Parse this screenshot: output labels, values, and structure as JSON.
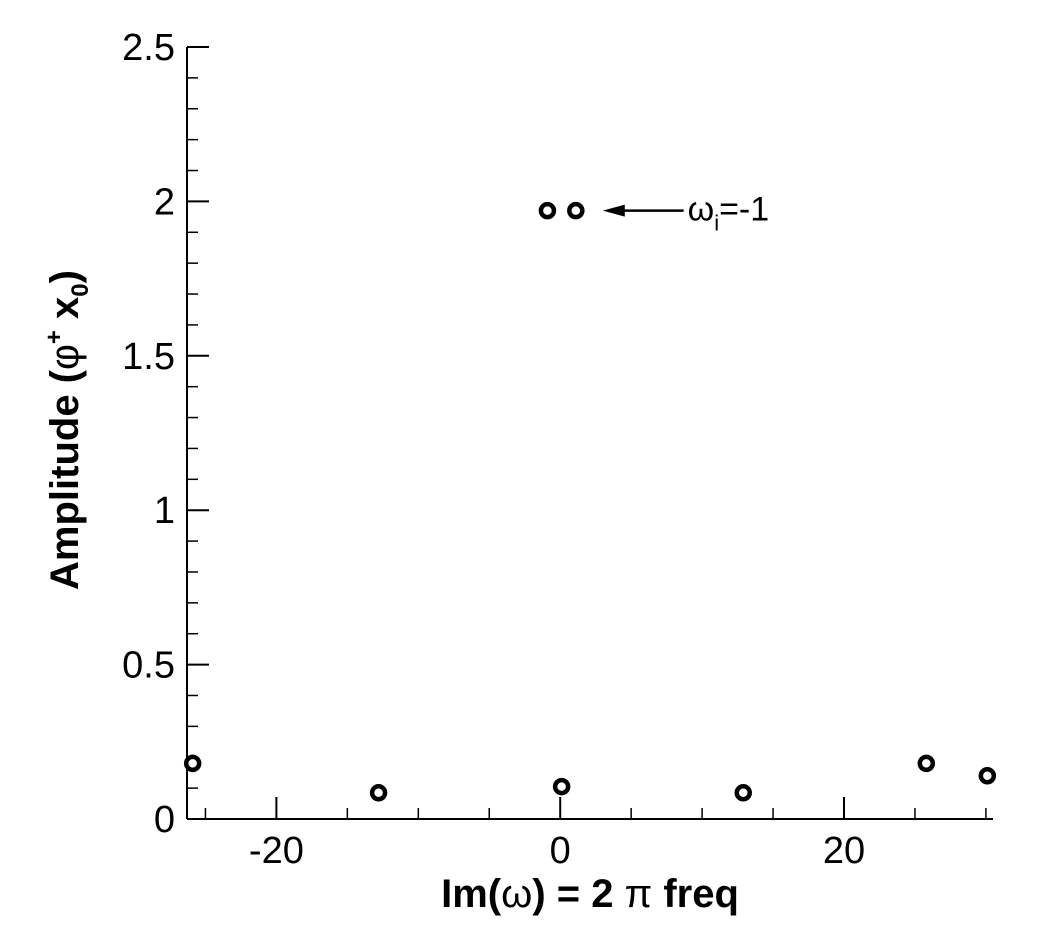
{
  "chart_data": {
    "type": "scatter",
    "title": "",
    "xlabel": {
      "main": "Im(",
      "omega": "ω",
      "rest": ") = 2 ",
      "pi": "π",
      "tail": " freq"
    },
    "ylabel": {
      "main": "Amplitude (",
      "phi": "φ",
      "phi_sup": "+",
      "x": " x",
      "x_sub": "0",
      "close": ")"
    },
    "xlim": [
      -26.3,
      30.5
    ],
    "ylim": [
      0,
      2.5
    ],
    "x_ticks": [
      {
        "value": -20,
        "label": "-20"
      },
      {
        "value": 0,
        "label": "0"
      },
      {
        "value": 20,
        "label": "20"
      }
    ],
    "y_ticks": [
      {
        "value": 0,
        "label": "0"
      },
      {
        "value": 0.5,
        "label": "0.5"
      },
      {
        "value": 1,
        "label": "1"
      },
      {
        "value": 1.5,
        "label": "1.5"
      },
      {
        "value": 2,
        "label": "2"
      },
      {
        "value": 2.5,
        "label": "2.5"
      }
    ],
    "x_minor_step": 5,
    "y_minor_step": 0.1,
    "grid": false,
    "marker": "open-circle",
    "color": "#000000",
    "series": [
      {
        "points": [
          {
            "x": -25.9,
            "y": 0.18
          },
          {
            "x": -12.8,
            "y": 0.085
          },
          {
            "x": -0.9,
            "y": 1.97
          },
          {
            "x": 1.1,
            "y": 1.97
          },
          {
            "x": 0.1,
            "y": 0.105
          },
          {
            "x": 12.9,
            "y": 0.085
          },
          {
            "x": 25.8,
            "y": 0.18
          },
          {
            "x": 30.1,
            "y": 0.14
          }
        ]
      }
    ],
    "annotations": [
      {
        "omega": "ω",
        "sub": "i",
        "text": "=-1",
        "arrow_from": {
          "x": 8.7,
          "y": 1.97
        },
        "arrow_to": {
          "x": 3.0,
          "y": 1.97
        }
      }
    ]
  }
}
